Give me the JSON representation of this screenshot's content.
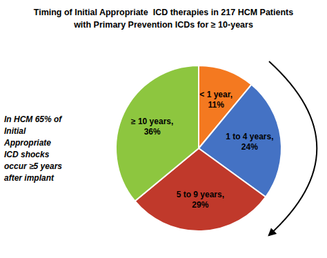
{
  "chart_data": {
    "type": "pie",
    "title": "Timing of Initial Appropriate  ICD therapies in 217 HCM Patients",
    "subtitle": "with Primary Prevention ICDs for ≥ 10-years",
    "categories": [
      "< 1 year,",
      "1 to 4 years,",
      "5 to 9 years,",
      "≥ 10 years,"
    ],
    "values": [
      11,
      24,
      29,
      36
    ],
    "value_labels": [
      "11%",
      "24%",
      "29%",
      "36%"
    ],
    "colors": [
      "#F47920",
      "#4472C4",
      "#C0392B",
      "#8DC63F"
    ],
    "data_labels": true,
    "annotations": [
      "In HCM 65% of",
      "Initial",
      "Appropriate",
      "ICD shocks",
      "occur ≥5 years",
      "after implant"
    ]
  }
}
